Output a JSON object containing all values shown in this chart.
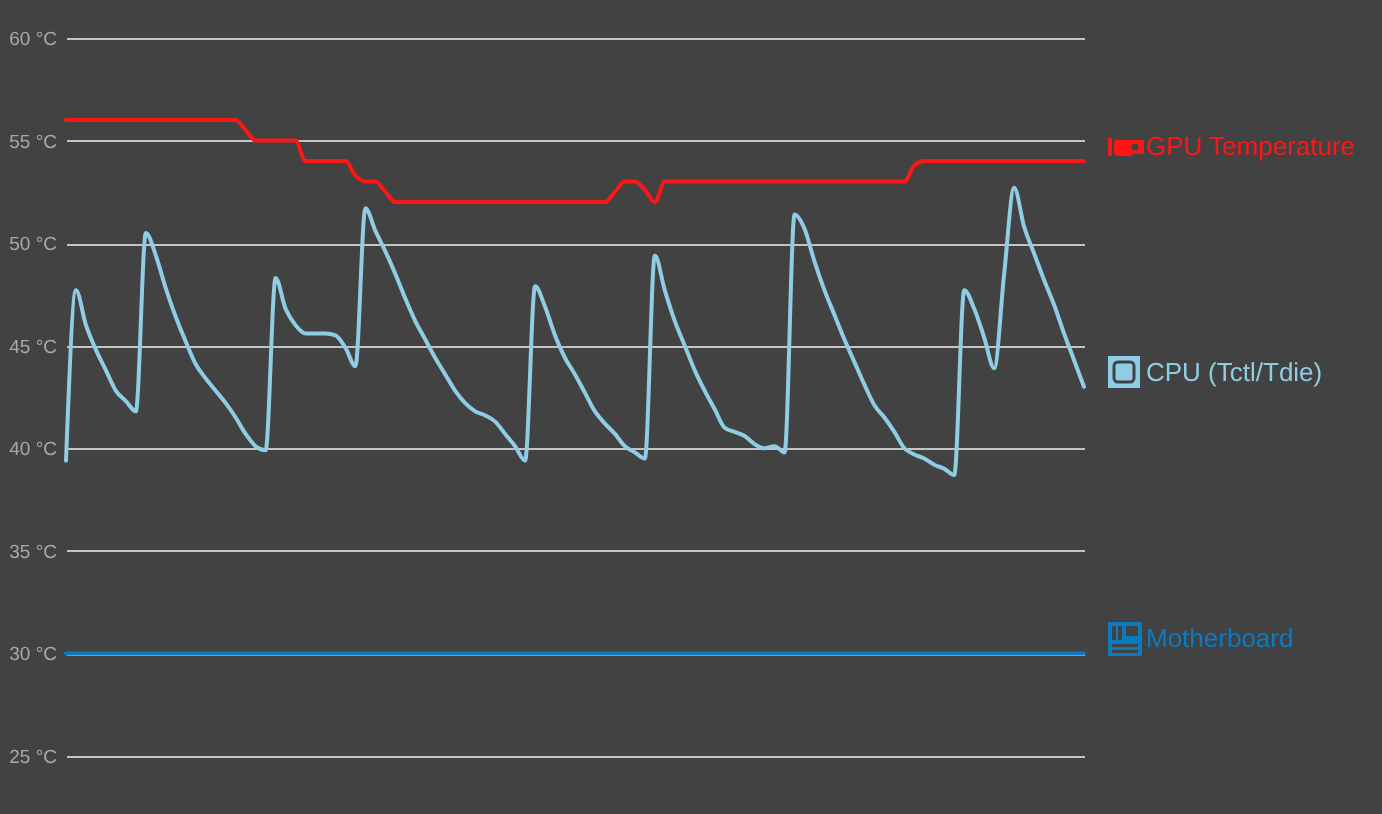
{
  "chart_data": {
    "type": "line",
    "categories": [
      null,
      null,
      null,
      null,
      null,
      null,
      null,
      null,
      null,
      null,
      null,
      null,
      null,
      null,
      null,
      null,
      null,
      null,
      null,
      null,
      null,
      null,
      null,
      null,
      null,
      null,
      null,
      null,
      null,
      null,
      null,
      null,
      null,
      null,
      null,
      null,
      null,
      null,
      null,
      null,
      null,
      null,
      null,
      null,
      null,
      null,
      null,
      null,
      null,
      null,
      null,
      null,
      null,
      null,
      null,
      null,
      null,
      null,
      null,
      null,
      null,
      null,
      null,
      null,
      null,
      null,
      null,
      null,
      null,
      null,
      null,
      null,
      null,
      null,
      null,
      null,
      null,
      null,
      null,
      null,
      null,
      null,
      null,
      null,
      null,
      null,
      null,
      null,
      null,
      null,
      null,
      null,
      null,
      null,
      null,
      null,
      null,
      null,
      null,
      null,
      null,
      null,
      null
    ],
    "series": [
      {
        "name": "GPU Temperature",
        "color": "#fe1616",
        "values": [
          56,
          56,
          56,
          56,
          56,
          56,
          56,
          56,
          56,
          56,
          56,
          56,
          56,
          56,
          56,
          56,
          56,
          56,
          55.5,
          55,
          55,
          55,
          55,
          55,
          54,
          54,
          54,
          54,
          54,
          53.3,
          53,
          53,
          52.5,
          52,
          52,
          52,
          52,
          52,
          52,
          52,
          52,
          52,
          52,
          52,
          52,
          52,
          52,
          52,
          52,
          52,
          52,
          52,
          52,
          52,
          52,
          52.5,
          53,
          53,
          52.6,
          52,
          53,
          53,
          53,
          53,
          53,
          53,
          53,
          53,
          53,
          53,
          53,
          53,
          53,
          53,
          53,
          53,
          53,
          53,
          53,
          53,
          53,
          53,
          53,
          53,
          53,
          53.8,
          54,
          54,
          54,
          54,
          54,
          54,
          54,
          54,
          54,
          54,
          54,
          54,
          54,
          54,
          54,
          54,
          54
        ]
      },
      {
        "name": "CPU (Tctl/Tdie)",
        "color": "#8ecde4",
        "values": [
          39.4,
          47.7,
          46.0,
          44.8,
          43.8,
          42.8,
          42.3,
          41.8,
          50.5,
          49.4,
          47.8,
          46.4,
          45.2,
          44.1,
          43.4,
          42.8,
          42.2,
          41.5,
          40.7,
          40.1,
          39.9,
          48.3,
          46.8,
          46.0,
          45.6,
          45.6,
          45.6,
          45.5,
          44.9,
          44.0,
          51.7,
          50.6,
          49.6,
          48.5,
          47.3,
          46.2,
          45.3,
          44.4,
          43.6,
          42.8,
          42.2,
          41.8,
          41.6,
          41.3,
          40.7,
          40.1,
          39.4,
          47.9,
          46.9,
          45.5,
          44.4,
          43.6,
          42.7,
          41.8,
          41.2,
          40.7,
          40.1,
          39.8,
          39.5,
          49.4,
          47.7,
          46.2,
          45.0,
          43.8,
          42.8,
          41.9,
          41.0,
          40.8,
          40.6,
          40.2,
          40.0,
          40.1,
          39.8,
          51.4,
          50.7,
          49.1,
          47.7,
          46.5,
          45.3,
          44.2,
          43.1,
          42.1,
          41.5,
          40.8,
          40.0,
          39.7,
          39.5,
          39.2,
          39.0,
          38.7,
          47.7,
          46.8,
          45.4,
          43.9,
          48.5,
          52.7,
          50.8,
          49.5,
          48.2,
          47.0,
          45.6,
          44.3,
          43.0
        ]
      },
      {
        "name": "Motherboard",
        "color": "#0a7bc2",
        "values": [
          30,
          30,
          30,
          30,
          30,
          30,
          30,
          30,
          30,
          30,
          30,
          30,
          30,
          30,
          30,
          30,
          30,
          30,
          30,
          30,
          30,
          30,
          30,
          30,
          30,
          30,
          30,
          30,
          30,
          30,
          30,
          30,
          30,
          30,
          30,
          30,
          30,
          30,
          30,
          30,
          30,
          30,
          30,
          30,
          30,
          30,
          30,
          30,
          30,
          30,
          30,
          30,
          30,
          30,
          30,
          30,
          30,
          30,
          30,
          30,
          30,
          30,
          30,
          30,
          30,
          30,
          30,
          30,
          30,
          30,
          30,
          30,
          30,
          30,
          30,
          30,
          30,
          30,
          30,
          30,
          30,
          30,
          30,
          30,
          30,
          30,
          30,
          30,
          30,
          30,
          30,
          30,
          30,
          30,
          30,
          30,
          30,
          30,
          30,
          30,
          30,
          30,
          30
        ]
      }
    ],
    "ylim": [
      25,
      60
    ],
    "yticks": [
      {
        "value": 25,
        "label": "25 °C"
      },
      {
        "value": 30,
        "label": "30 °C"
      },
      {
        "value": 35,
        "label": "35 °C"
      },
      {
        "value": 40,
        "label": "40 °C"
      },
      {
        "value": 45,
        "label": "45 °C"
      },
      {
        "value": 50,
        "label": "50 °C"
      },
      {
        "value": 55,
        "label": "55 °C"
      },
      {
        "value": 60,
        "label": "60 °C"
      }
    ],
    "grid": "y",
    "legend": "right"
  }
}
